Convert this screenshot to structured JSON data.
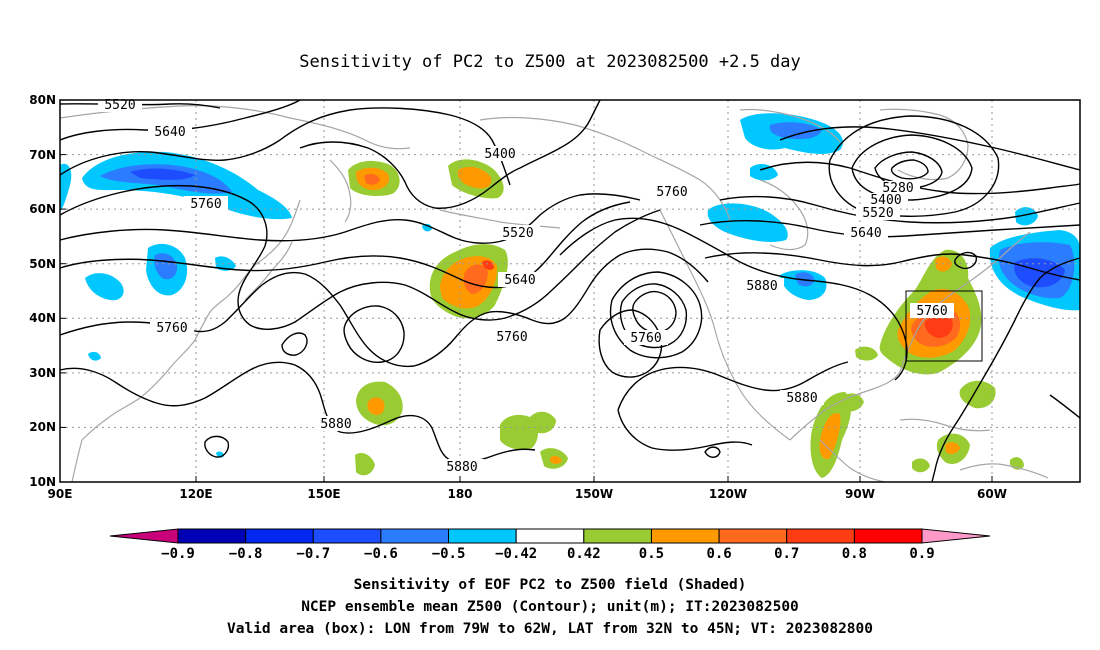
{
  "title": "Sensitivity of PC2 to Z500 at 2023082500 +2.5 day",
  "lat_labels": [
    "80N",
    "70N",
    "60N",
    "50N",
    "40N",
    "30N",
    "20N",
    "10N"
  ],
  "lon_labels": [
    "90E",
    "120E",
    "150E",
    "180",
    "150W",
    "120W",
    "90W",
    "60W"
  ],
  "colorbar": {
    "labels": [
      "-0.9",
      "-0.8",
      "-0.7",
      "-0.6",
      "-0.5",
      "-0.42",
      "0.42",
      "0.5",
      "0.6",
      "0.7",
      "0.8",
      "0.9"
    ],
    "colors": [
      "#c8007a",
      "#0000b4",
      "#0028f0",
      "#1e4cff",
      "#2b7cff",
      "#00c8ff",
      "#ffffff",
      "#99cc33",
      "#ff9900",
      "#ff6a1e",
      "#ff3c14",
      "#ff0000",
      "#ff99c8"
    ]
  },
  "contour_labels": [
    {
      "text": "5520"
    },
    {
      "text": "5640"
    },
    {
      "text": "5760"
    },
    {
      "text": "5400"
    },
    {
      "text": "5760"
    },
    {
      "text": "5520"
    },
    {
      "text": "5640"
    },
    {
      "text": "5760"
    },
    {
      "text": "5760"
    },
    {
      "text": "5760"
    },
    {
      "text": "5880"
    },
    {
      "text": "5880"
    },
    {
      "text": "5880"
    },
    {
      "text": "5880"
    },
    {
      "text": "5280"
    },
    {
      "text": "5400"
    },
    {
      "text": "5520"
    },
    {
      "text": "5640"
    },
    {
      "text": "5760"
    }
  ],
  "caption": {
    "line1": "Sensitivity of EOF PC2 to Z500 field (Shaded)",
    "line2": "NCEP ensemble mean Z500 (Contour); unit(m); IT:2023082500",
    "line3": "Valid area (box): LON from 79W to 62W, LAT from 32N to 45N; VT: 2023082800"
  },
  "valid_box": {
    "lon_from": "79W",
    "lon_to": "62W",
    "lat_from": "32N",
    "lat_to": "45N"
  }
}
